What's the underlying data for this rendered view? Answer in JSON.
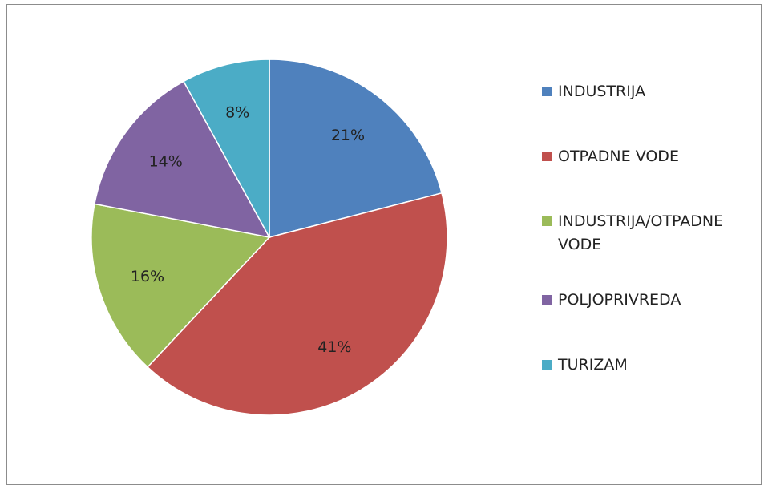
{
  "chart_data": {
    "type": "pie",
    "categories": [
      "INDUSTRIJA",
      "OTPADNE VODE",
      "INDUSTRIJA/OTPADNE VODE",
      "POLJOPRIVREDA",
      "TURIZAM"
    ],
    "values": [
      21,
      41,
      16,
      14,
      8
    ],
    "value_labels": [
      "21%",
      "41%",
      "16%",
      "14%",
      "8%"
    ],
    "colors": [
      "#4f81bd",
      "#c0504d",
      "#9bbb59",
      "#8064a2",
      "#4bacc6"
    ],
    "legend": "right"
  }
}
